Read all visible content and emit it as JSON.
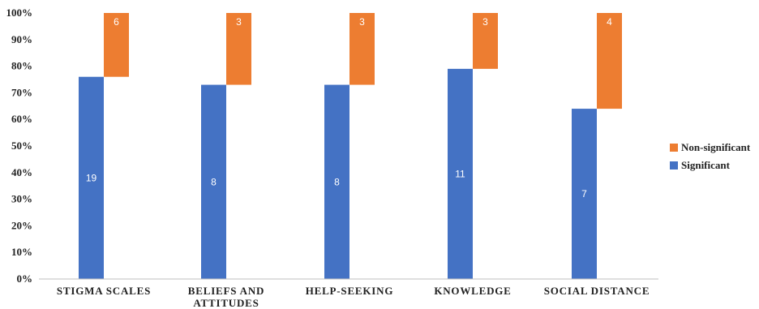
{
  "chart_data": {
    "type": "bar",
    "stacked": true,
    "orientation": "vertical",
    "categories": [
      "STIGMA SCALES",
      "BELIEFS AND ATTITUDES",
      "HELP-SEEKING",
      "KNOWLEDGE",
      "SOCIAL DISTANCE"
    ],
    "category_lines": [
      [
        "STIGMA SCALES"
      ],
      [
        "BELIEFS AND",
        "ATTITUDES"
      ],
      [
        "HELP-SEEKING"
      ],
      [
        "KNOWLEDGE"
      ],
      [
        "SOCIAL DISTANCE"
      ]
    ],
    "series": [
      {
        "name": "Significant",
        "color": "#4472C4",
        "counts": [
          19,
          8,
          8,
          11,
          7
        ],
        "percent": [
          76,
          73,
          73,
          79,
          64
        ]
      },
      {
        "name": "Non-significant",
        "color": "#ED7D31",
        "counts": [
          6,
          3,
          3,
          3,
          4
        ],
        "percent": [
          24,
          27,
          27,
          21,
          36
        ]
      }
    ],
    "yticks": [
      "0%",
      "10%",
      "20%",
      "30%",
      "40%",
      "50%",
      "60%",
      "70%",
      "80%",
      "90%",
      "100%"
    ],
    "ylim": [
      0,
      100
    ],
    "grid": false,
    "legend": {
      "placement": "right",
      "order": [
        "Non-significant",
        "Significant"
      ]
    }
  }
}
